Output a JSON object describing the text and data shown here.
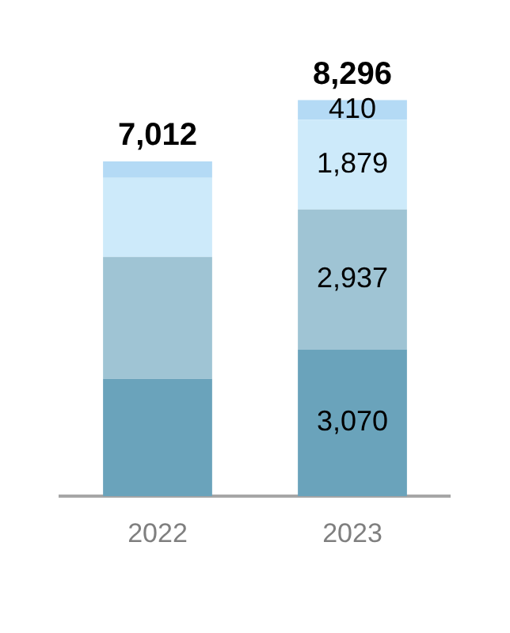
{
  "chart_data": {
    "type": "bar",
    "stacked": true,
    "categories": [
      "2022",
      "2023"
    ],
    "series": [
      {
        "color": "#6aa3bb",
        "values": [
          2460,
          3070
        ],
        "value_labels": [
          null,
          "3,070"
        ]
      },
      {
        "color": "#9fc4d4",
        "values": [
          2550,
          2937
        ],
        "value_labels": [
          null,
          "2,937"
        ]
      },
      {
        "color": "#cdeafa",
        "values": [
          1660,
          1879
        ],
        "value_labels": [
          null,
          "1,879"
        ]
      },
      {
        "color": "#b4daf5",
        "values": [
          342,
          410
        ],
        "value_labels": [
          null,
          "410"
        ]
      }
    ],
    "totals": [
      "7,012",
      "8,296"
    ],
    "legend": false,
    "grid": false
  }
}
